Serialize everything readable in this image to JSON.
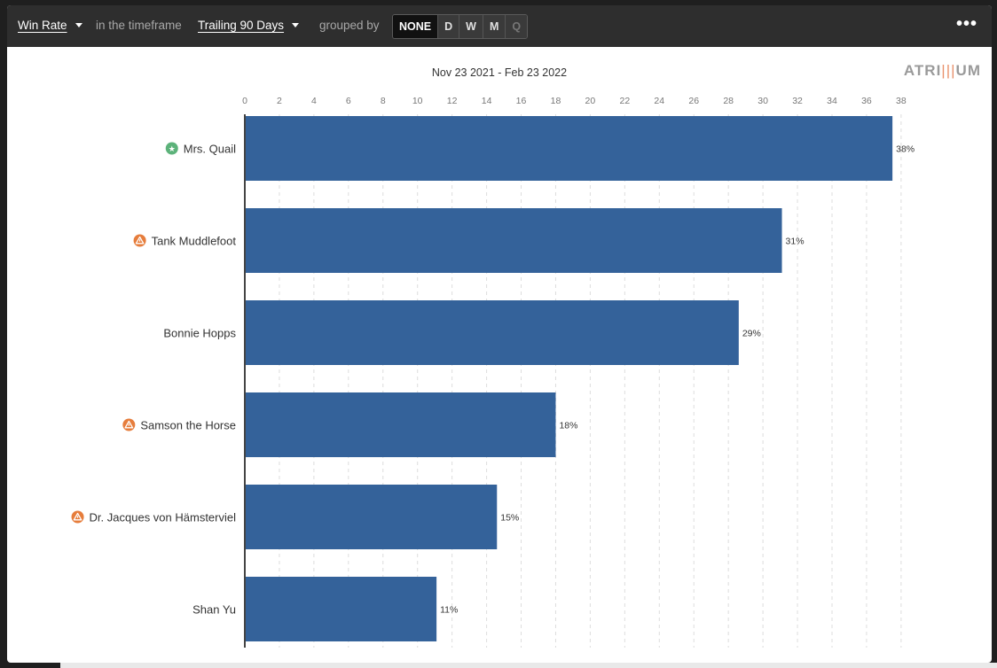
{
  "toolbar": {
    "metric_label": "Win Rate",
    "timeframe_prefix": "in the timeframe",
    "timeframe_label": "Trailing 90 Days",
    "grouped_prefix": "grouped by",
    "group_options": [
      "NONE",
      "D",
      "W",
      "M",
      "Q"
    ],
    "group_selected": "NONE",
    "more_label": "•••"
  },
  "logo": {
    "text_left": "ATRI",
    "text_bars": "|||",
    "text_right": "UM"
  },
  "chart_data": {
    "type": "bar",
    "orientation": "horizontal",
    "title": "Nov 23 2021 - Feb 23 2022",
    "xlabel": "",
    "ylabel": "",
    "xlim": [
      0,
      38
    ],
    "x_ticks": [
      0,
      2,
      4,
      6,
      8,
      10,
      12,
      14,
      16,
      18,
      20,
      22,
      24,
      26,
      28,
      30,
      32,
      34,
      36,
      38
    ],
    "grid": "vertical dashed",
    "bar_color": "#34629a",
    "categories": [
      "Mrs. Quail",
      "Tank Muddlefoot",
      "Bonnie Hopps",
      "Samson the Horse",
      "Dr. Jacques von Hämsterviel",
      "Shan Yu"
    ],
    "values": [
      37.5,
      31.1,
      28.6,
      18.0,
      14.6,
      11.1
    ],
    "data_labels": [
      "38%",
      "31%",
      "29%",
      "18%",
      "15%",
      "11%"
    ],
    "status_icons": [
      "star-badge",
      "warning-badge",
      "none",
      "warning-badge",
      "warning-badge",
      "none"
    ],
    "status_colors": {
      "star-badge": "#5cb27a",
      "warning-badge": "#e67d3c"
    }
  }
}
